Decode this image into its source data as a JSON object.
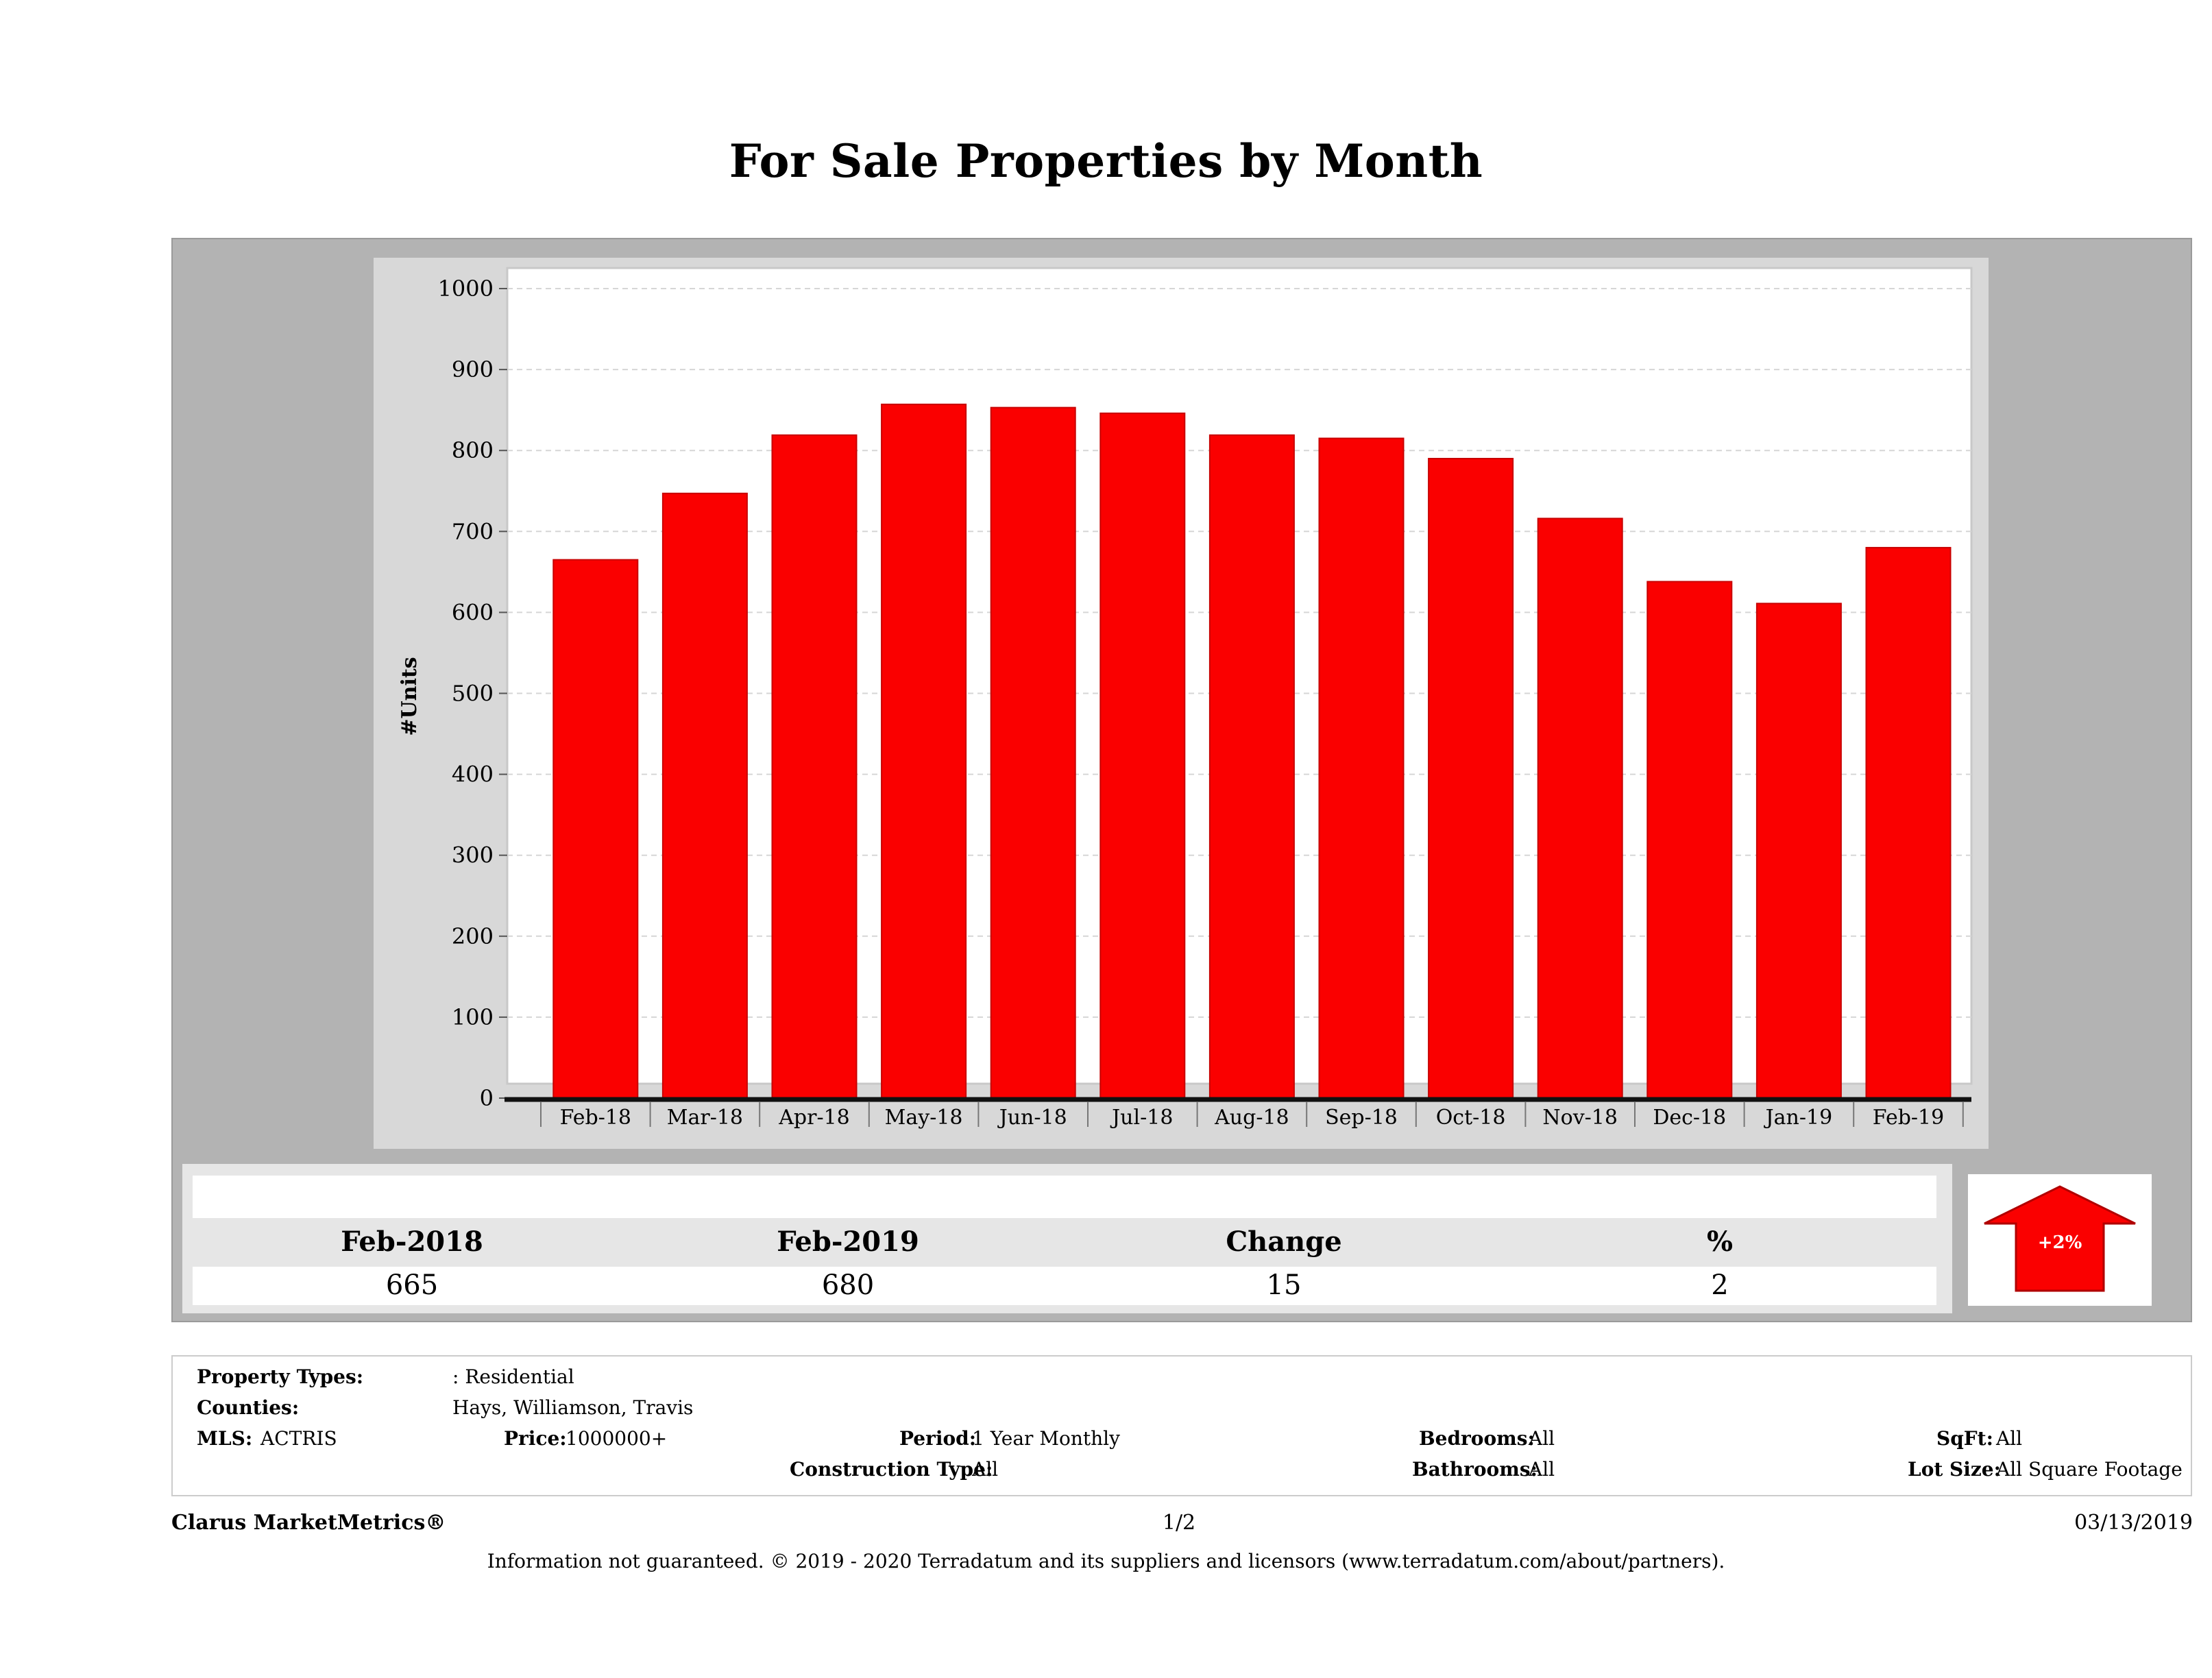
{
  "chart_data": {
    "type": "bar",
    "title": "For Sale Properties by Month",
    "xlabel": "",
    "ylabel": "#Units",
    "categories": [
      "Feb-18",
      "Mar-18",
      "Apr-18",
      "May-18",
      "Jun-18",
      "Jul-18",
      "Aug-18",
      "Sep-18",
      "Oct-18",
      "Nov-18",
      "Dec-18",
      "Jan-19",
      "Feb-19"
    ],
    "values": [
      665,
      747,
      819,
      857,
      853,
      846,
      819,
      815,
      790,
      716,
      638,
      611,
      680
    ],
    "ylim": [
      0,
      1000
    ],
    "yticks": [
      "0",
      "100",
      "200",
      "300",
      "400",
      "500",
      "600",
      "700",
      "800",
      "900",
      "1000"
    ],
    "grid": true,
    "bar_color": "#fa0000"
  },
  "summary": {
    "col1_label": "Feb-2018",
    "col1_value": "665",
    "col2_label": "Feb-2019",
    "col2_value": "680",
    "col3_label": "Change",
    "col3_value": "15",
    "col4_label": "%",
    "col4_value": "2",
    "arrow_label": "+2%",
    "arrow_icon": "up-arrow-icon",
    "arrow_color": "#fa0000"
  },
  "info": {
    "property_types_label": "Property Types:",
    "property_types_value": ": Residential",
    "counties_label": "Counties:",
    "counties_value": "Hays, Williamson, Travis",
    "mls_label": "MLS:",
    "mls_value": "ACTRIS",
    "price_label": "Price:",
    "price_value": "1000000+",
    "period_label": "Period:",
    "period_value": "1 Year Monthly",
    "construction_label": "Construction Type:",
    "construction_value": "All",
    "bedrooms_label": "Bedrooms:",
    "bedrooms_value": "All",
    "bathrooms_label": "Bathrooms:",
    "bathrooms_value": "All",
    "sqft_label": "SqFt:",
    "sqft_value": "All",
    "lotsize_label": "Lot Size:",
    "lotsize_value": "All Square Footage"
  },
  "footer": {
    "brand": "Clarus MarketMetrics®",
    "page": "1/2",
    "date": "03/13/2019",
    "disclaimer": "Information not guaranteed. © 2019 - 2020 Terradatum and its suppliers and licensors (www.terradatum.com/about/partners)."
  }
}
